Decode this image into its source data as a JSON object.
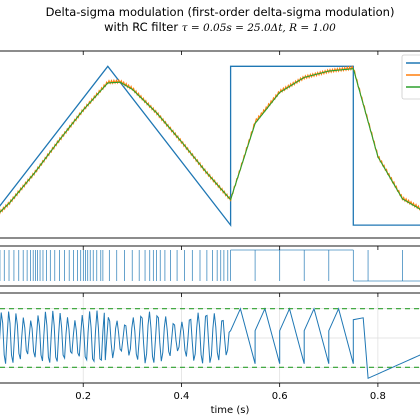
{
  "chart_data": [
    {
      "type": "line",
      "panel": "signal",
      "title": "Delta-sigma modulation (first-order delta-sigma modulation)",
      "subtitle_prefix": "with RC filter ",
      "subtitle_math": "τ = 0.05s = 25.0Δt, R = 1.00",
      "legend_position": "top-right",
      "xlim": [
        0,
        0.9
      ],
      "ylim": [
        -1.15,
        1.18
      ],
      "grid": false,
      "series": [
        {
          "color": "#1f77b4",
          "description": "triangle then square reference",
          "x": [
            0,
            0.25,
            0.5,
            0.5,
            0.75,
            0.75,
            0.9
          ],
          "values": [
            -1.0,
            1.0,
            -1.0,
            1.0,
            1.0,
            -1.0,
            -1.0
          ]
        },
        {
          "color": "#ff7f0e",
          "description": "RC filtered (jagged)",
          "x": [
            0.0,
            0.05,
            0.1,
            0.15,
            0.2,
            0.25,
            0.275,
            0.3,
            0.35,
            0.4,
            0.45,
            0.5,
            0.55,
            0.6,
            0.65,
            0.7,
            0.75,
            0.8,
            0.85,
            0.9
          ],
          "values": [
            -1.02,
            -0.72,
            -0.35,
            0.06,
            0.45,
            0.8,
            0.81,
            0.72,
            0.41,
            0.05,
            -0.33,
            -0.68,
            0.3,
            0.68,
            0.86,
            0.94,
            0.98,
            -0.13,
            -0.66,
            -0.84
          ]
        },
        {
          "color": "#2ca02c",
          "description": "RC filtered (smooth)",
          "x": [
            0.0,
            0.05,
            0.1,
            0.15,
            0.2,
            0.25,
            0.275,
            0.3,
            0.35,
            0.4,
            0.45,
            0.5,
            0.55,
            0.6,
            0.65,
            0.7,
            0.75,
            0.8,
            0.85,
            0.9
          ],
          "values": [
            -1.02,
            -0.72,
            -0.35,
            0.06,
            0.45,
            0.79,
            0.8,
            0.71,
            0.41,
            0.05,
            -0.33,
            -0.68,
            0.28,
            0.67,
            0.86,
            0.94,
            0.97,
            -0.14,
            -0.67,
            -0.85
          ]
        }
      ]
    },
    {
      "type": "line",
      "panel": "bitstream",
      "description": "binary output of the modulator (vertical transitions)",
      "color": "#1f77b4",
      "xlim": [
        0,
        0.9
      ],
      "segments": [
        {
          "x0": 0.0,
          "x1": 0.24,
          "pattern": "dense-toggle"
        },
        {
          "x0": 0.24,
          "x1": 0.5,
          "pattern": "sparse-toggle"
        },
        {
          "x0": 0.5,
          "x1": 0.75,
          "level": "high",
          "sparse_dips": [
            0.55,
            0.6,
            0.65,
            0.7
          ]
        },
        {
          "x0": 0.75,
          "x1": 0.9,
          "level": "low",
          "sparse_pulses": [
            0.78,
            0.85
          ]
        }
      ]
    },
    {
      "type": "line",
      "panel": "error",
      "color": "#1f77b4",
      "threshold_color": "#2ca02c",
      "threshold_style": "dashed",
      "ylim": [
        -1.2,
        1.2
      ],
      "threshold_levels": [
        0.8,
        -0.8
      ],
      "grid": true,
      "xlabel": "time (s)",
      "xlim": [
        0,
        0.9
      ],
      "xticks": [
        0.2,
        0.4,
        0.6,
        0.8
      ],
      "xtick_labels": [
        "0.2",
        "0.4",
        "0.6",
        "0.8"
      ]
    }
  ]
}
